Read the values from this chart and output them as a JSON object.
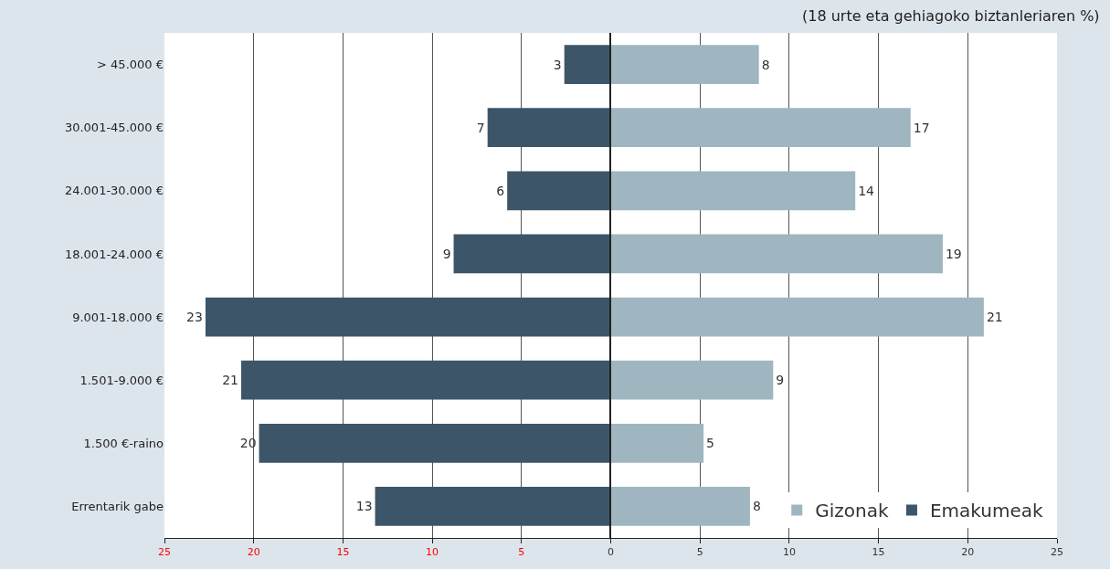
{
  "chart_data": [
    {
      "type": "bar",
      "orientation": "horizontal",
      "categories": [
        "> 45.000 €",
        "30.001-45.000 €",
        "24.001-30.000 €",
        "18.001-24.000 €",
        "9.001-18.000 €",
        "1.501-9.000 €",
        "1.500 €-raino",
        "Errentarik gabe"
      ],
      "series": [
        {
          "name": "Emakumeak",
          "color": "#3d5568",
          "values": [
            2.6,
            6.9,
            5.8,
            8.8,
            22.7,
            20.7,
            19.7,
            13.2
          ],
          "value_labels": [
            "3",
            "7",
            "6",
            "9",
            "23",
            "21",
            "20",
            "13"
          ]
        }
      ],
      "xlim": [
        25,
        0
      ],
      "xticks": [
        25,
        20,
        15,
        10,
        5
      ],
      "grid": "x",
      "legend": "bottom right"
    },
    {
      "type": "bar",
      "orientation": "horizontal",
      "annotations": [
        "(18 urte eta gehiagoko biztanleriaren %)"
      ],
      "categories": [
        "> 45.000 €",
        "30.001-45.000 €",
        "24.001-30.000 €",
        "18.001-24.000 €",
        "9.001-18.000 €",
        "1.501-9.000 €",
        "1.500 €-raino",
        "Errentarik gabe"
      ],
      "series": [
        {
          "name": "Gizonak",
          "color": "#9fb6c1",
          "values": [
            8.3,
            16.8,
            13.7,
            18.6,
            20.9,
            9.1,
            5.2,
            7.8
          ],
          "value_labels": [
            "8",
            "17",
            "14",
            "19",
            "21",
            "9",
            "5",
            "8"
          ]
        }
      ],
      "xlim": [
        0,
        25
      ],
      "xticks": [
        0,
        5,
        10,
        15,
        20,
        25
      ],
      "tick_labels": "x",
      "grid": "x",
      "legend": "bottom right"
    }
  ]
}
